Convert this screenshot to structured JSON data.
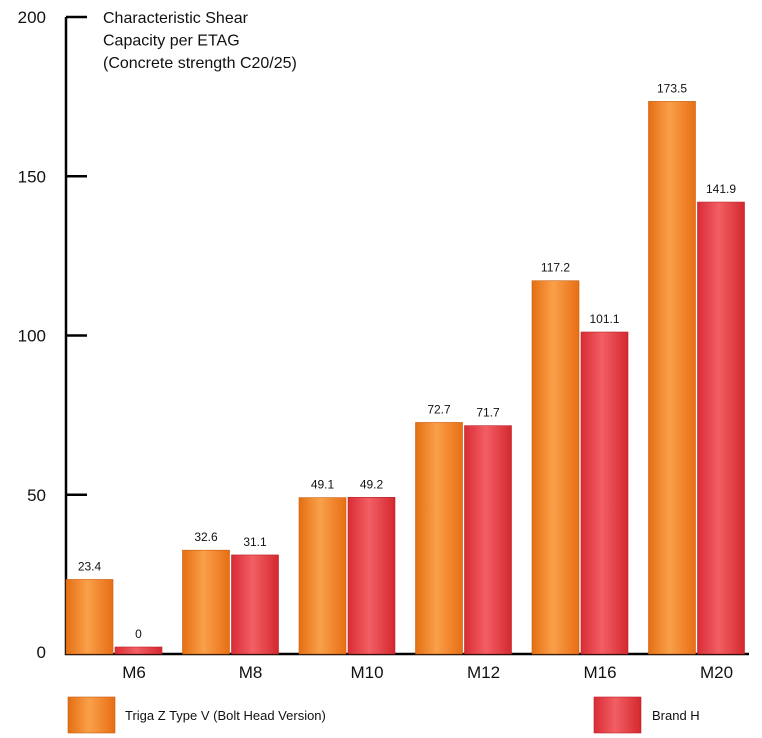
{
  "chart_data": {
    "type": "bar",
    "title_lines": [
      "Characteristic Shear",
      "Capacity per ETAG",
      "(Concrete strength C20/25)"
    ],
    "xlabel": "",
    "ylabel": "",
    "ylim": [
      0,
      200
    ],
    "yticks": [
      0,
      50,
      100,
      150,
      200
    ],
    "categories": [
      "M6",
      "M8",
      "M10",
      "M12",
      "M16",
      "M20"
    ],
    "series": [
      {
        "name": "Triga Z Type V (Bolt Head Version)",
        "values": [
          23.4,
          32.6,
          49.1,
          72.7,
          117.2,
          173.5
        ],
        "labels": [
          "23.4",
          "32.6",
          "49.1",
          "72.7",
          "117.2",
          "173.5"
        ],
        "color": "#f0862a"
      },
      {
        "name": "Brand H",
        "values": [
          0,
          31.1,
          49.2,
          71.7,
          101.1,
          141.9
        ],
        "labels": [
          "0",
          "31.1",
          "49.2",
          "71.7",
          "101.1",
          "141.9"
        ],
        "color": "#e8434a"
      }
    ],
    "grid": false,
    "legend_position": "bottom"
  }
}
